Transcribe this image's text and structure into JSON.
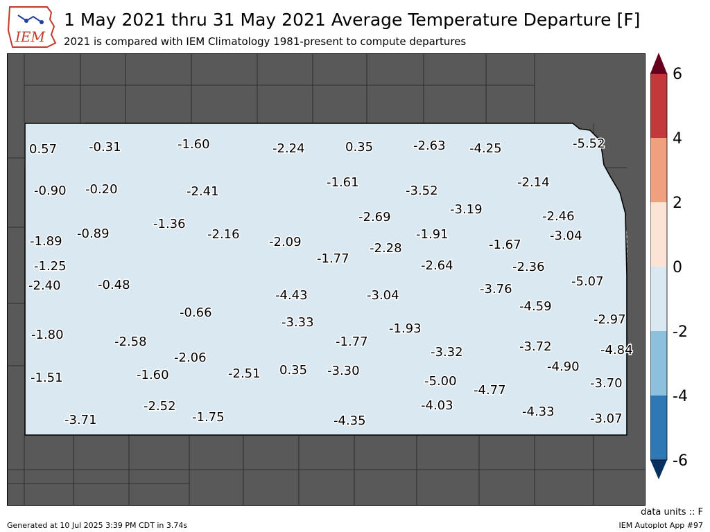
{
  "header": {
    "title": "1 May 2021 thru 31 May 2021 Average Temperature Departure [F]",
    "subtitle": "2021 is compared with IEM Climatology 1981-present to compute departures",
    "logo_text": "IEM"
  },
  "colorbar": {
    "ticks": [
      "6",
      "4",
      "2",
      "0",
      "-2",
      "-4",
      "-6"
    ],
    "colors": {
      "above_6": "#67001f",
      "4_to_6": "#c3383a",
      "2_to_4": "#f0a07e",
      "0_to_2": "#fbe3d6",
      "neg2_to_0": "#dae8f2",
      "neg4_to_neg2": "#8cc0dd",
      "neg6_to_neg4": "#2e78b5",
      "below_neg6": "#053061"
    }
  },
  "map": {
    "background_color": "#595959",
    "values": [
      "0.57",
      "-0.31",
      "-1.60",
      "-2.24",
      "0.35",
      "-2.63",
      "-4.25",
      "-5.52",
      "-0.90",
      "-0.20",
      "-2.41",
      "-1.61",
      "-3.52",
      "-2.14",
      "-1.89",
      "-0.89",
      "-1.36",
      "-2.16",
      "-2.09",
      "-2.69",
      "-3.19",
      "-2.46",
      "-1.91",
      "-3.04",
      "-2.28",
      "-1.67",
      "-1.25",
      "-2.40",
      "-0.48",
      "-1.77",
      "-2.64",
      "-2.36",
      "-5.07",
      "-4.43",
      "-3.04",
      "-3.76",
      "-4.59",
      "-0.66",
      "-3.33",
      "-1.93",
      "-2.97",
      "-1.80",
      "-2.58",
      "-1.77",
      "-3.32",
      "-3.72",
      "-4.84",
      "-2.06",
      "-4.90",
      "-1.51",
      "-1.60",
      "-2.51",
      "0.35",
      "-3.30",
      "-5.00",
      "-4.77",
      "-3.70",
      "-3.71",
      "-2.52",
      "-1.75",
      "-4.35",
      "-4.03",
      "-4.33",
      "-3.07"
    ]
  },
  "footer": {
    "generated": "Generated at 10 Jul 2025 3:39 PM CDT in 3.74s",
    "app": "IEM Autoplot App #97",
    "units": "data units :: F"
  }
}
